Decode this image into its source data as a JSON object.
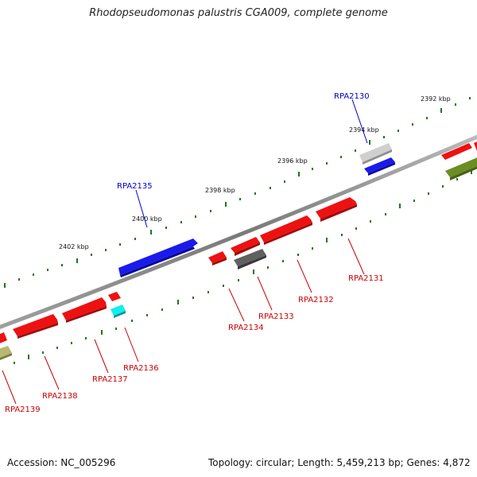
{
  "header": {
    "title": "Rhodopseudomonas palustris CGA009, complete genome"
  },
  "footer": {
    "accession": "Accession: NC_005296",
    "summary": "Topology: circular; Length: 5,459,213 bp; Genes: 4,872"
  },
  "scale_labels": [
    "2392 kbp",
    "2394 kbp",
    "2396 kbp",
    "2398 kbp",
    "2400 kbp",
    "2402 kbp"
  ],
  "gene_labels": [
    {
      "id": "RPA2130",
      "color": "#0000cc"
    },
    {
      "id": "RPA2131",
      "color": "#cc0000"
    },
    {
      "id": "RPA2132",
      "color": "#cc0000"
    },
    {
      "id": "RPA2133",
      "color": "#cc0000"
    },
    {
      "id": "RPA2134",
      "color": "#cc0000"
    },
    {
      "id": "RPA2135",
      "color": "#0000cc"
    },
    {
      "id": "RPA2136",
      "color": "#cc0000"
    },
    {
      "id": "RPA2137",
      "color": "#cc0000"
    },
    {
      "id": "RPA2138",
      "color": "#cc0000"
    },
    {
      "id": "RPA2139",
      "color": "#cc0000"
    }
  ],
  "colors": {
    "backbone": "#8a8a8a",
    "tick": "#1a7a1a",
    "red_gene": "#ee1111",
    "blue_gene": "#1111ee",
    "gray_gene": "#aaaaaa",
    "dark_gray_gene": "#606060",
    "cyan_gene": "#11eeee",
    "olive_gene": "#6b8e23",
    "khaki_gene": "#b8b870"
  }
}
